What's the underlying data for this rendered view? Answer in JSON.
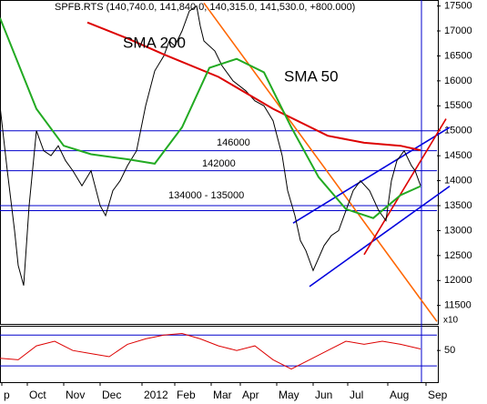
{
  "chart_data": [
    {
      "type": "line",
      "title": "SPFB.RTS (140,740.0, 141,840.0, 140,315.0, 141,530.0, +800.000)",
      "y_unit_label": "x10",
      "xlim": [
        0,
        240
      ],
      "ylim": [
        11130,
        17620
      ],
      "yticks": [
        11500,
        12000,
        12500,
        13000,
        13500,
        14000,
        14500,
        15000,
        15500,
        16000,
        16500,
        17000,
        17500
      ],
      "series": [
        {
          "color": "#000000",
          "x": [
            0,
            4,
            8,
            10,
            13,
            16,
            20,
            24,
            28,
            32,
            36,
            40,
            45,
            50,
            55,
            58,
            62,
            66,
            70,
            75,
            80,
            85,
            90,
            93,
            96,
            100,
            104,
            108,
            110,
            112,
            118,
            122,
            128,
            135,
            140,
            145,
            150,
            155,
            158,
            162,
            165,
            168,
            172,
            178,
            182,
            186,
            190,
            194,
            198,
            203,
            208,
            212,
            215,
            218,
            222,
            226,
            228,
            231
          ],
          "values": [
            15500,
            14200,
            13000,
            12300,
            11900,
            13500,
            15000,
            14600,
            14500,
            14700,
            14400,
            14200,
            13900,
            14200,
            13500,
            13300,
            13800,
            14000,
            14300,
            14600,
            15500,
            16200,
            16500,
            16800,
            16700,
            17000,
            17400,
            17500,
            17100,
            16800,
            16600,
            16300,
            16000,
            15800,
            15600,
            15500,
            15200,
            14500,
            13800,
            13300,
            12800,
            12600,
            12200,
            12700,
            12900,
            13000,
            13400,
            13800,
            14000,
            13800,
            13400,
            13200,
            14000,
            14400,
            14600,
            14300,
            14200,
            13900
          ]
        },
        {
          "name": "SMA 200",
          "color": "#dd0000",
          "x": [
            48,
            70,
            90,
            120,
            150,
            180,
            200,
            220,
            231
          ],
          "values": [
            17170,
            16850,
            16530,
            16080,
            15440,
            14900,
            14760,
            14700,
            14610
          ]
        },
        {
          "name": "SMA 50",
          "color": "#22aa22",
          "x": [
            0,
            10,
            20,
            35,
            50,
            70,
            85,
            100,
            115,
            130,
            145,
            160,
            175,
            190,
            205,
            220,
            231
          ],
          "values": [
            17260,
            16350,
            15440,
            14700,
            14530,
            14430,
            14340,
            15070,
            16260,
            16440,
            16170,
            15070,
            14070,
            13430,
            13250,
            13710,
            13890
          ]
        }
      ],
      "levels": [
        15000,
        14600,
        14200,
        13500,
        13400
      ],
      "level_color": "#0000cc",
      "annotations": [
        "146000",
        "142000",
        "134000 - 135000"
      ],
      "trendlines": [
        {
          "color": "#ff6600",
          "x": [
            112,
            240
          ],
          "values": [
            17560,
            11180
          ]
        },
        {
          "color": "#0000dd",
          "x": [
            161,
            247
          ],
          "values": [
            13150,
            15070
          ]
        },
        {
          "color": "#0000dd",
          "x": [
            170,
            247
          ],
          "values": [
            11880,
            13890
          ]
        },
        {
          "color": "#dd0000",
          "x": [
            200,
            245
          ],
          "values": [
            12520,
            15240
          ]
        }
      ]
    },
    {
      "type": "line",
      "xlim": [
        0,
        240
      ],
      "ylim": [
        9,
        82
      ],
      "yticks": [
        50
      ],
      "levels": [
        70,
        30
      ],
      "level_color": "#0000cc",
      "xticks": [
        {
          "value": 1,
          "label": "p"
        },
        {
          "value": 15,
          "label": "Oct"
        },
        {
          "value": 35,
          "label": "Nov"
        },
        {
          "value": 55,
          "label": "Dec"
        },
        {
          "value": 78,
          "label": "2012"
        },
        {
          "value": 96,
          "label": "Feb"
        },
        {
          "value": 116,
          "label": "Mar"
        },
        {
          "value": 132,
          "label": "Apr"
        },
        {
          "value": 152,
          "label": "May"
        },
        {
          "value": 172,
          "label": "Jun"
        },
        {
          "value": 191,
          "label": "Jul"
        },
        {
          "value": 213,
          "label": "Aug"
        },
        {
          "value": 234,
          "label": "Sep"
        }
      ],
      "series": [
        {
          "color": "#dd0000",
          "x": [
            0,
            10,
            20,
            30,
            40,
            50,
            60,
            70,
            80,
            90,
            100,
            110,
            120,
            130,
            140,
            150,
            160,
            170,
            180,
            190,
            200,
            210,
            220,
            231
          ],
          "values": [
            40,
            38,
            56,
            62,
            50,
            46,
            42,
            58,
            65,
            70,
            72,
            65,
            56,
            50,
            56,
            38,
            26,
            38,
            50,
            62,
            58,
            62,
            58,
            52
          ]
        }
      ]
    }
  ]
}
